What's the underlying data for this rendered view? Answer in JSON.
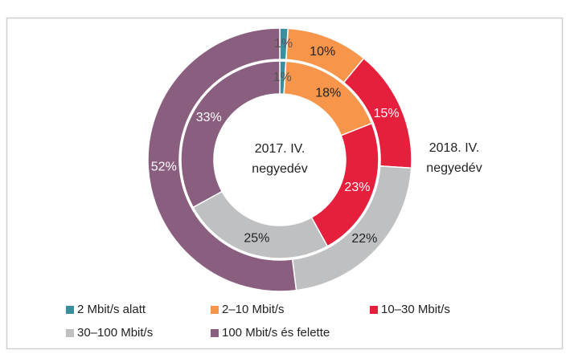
{
  "chart_data": {
    "type": "donut",
    "categories": [
      "2 Mbit/s alatt",
      "2–10 Mbit/s",
      "10–30 Mbit/s",
      "30–100 Mbit/s",
      "100 Mbit/s és felette"
    ],
    "colors": [
      "#3b8e9e",
      "#f7964a",
      "#e61f3c",
      "#bfc0c2",
      "#8a5e7e"
    ],
    "label_colors": [
      "#555555",
      "#222222",
      "#ffffff",
      "#222222",
      "#ffffff"
    ],
    "series": [
      {
        "label": [
          "2018. IV.",
          "negyedév"
        ],
        "values": [
          1,
          10,
          15,
          22,
          52
        ],
        "value_labels": [
          "1%",
          "10%",
          "15%",
          "22%",
          "52%"
        ]
      },
      {
        "label": [
          "2017. IV.",
          "negyedév"
        ],
        "values": [
          1,
          18,
          23,
          25,
          33
        ],
        "value_labels": [
          "1%",
          "18%",
          "23%",
          "25%",
          "33%"
        ]
      }
    ],
    "legend": "bottom"
  }
}
